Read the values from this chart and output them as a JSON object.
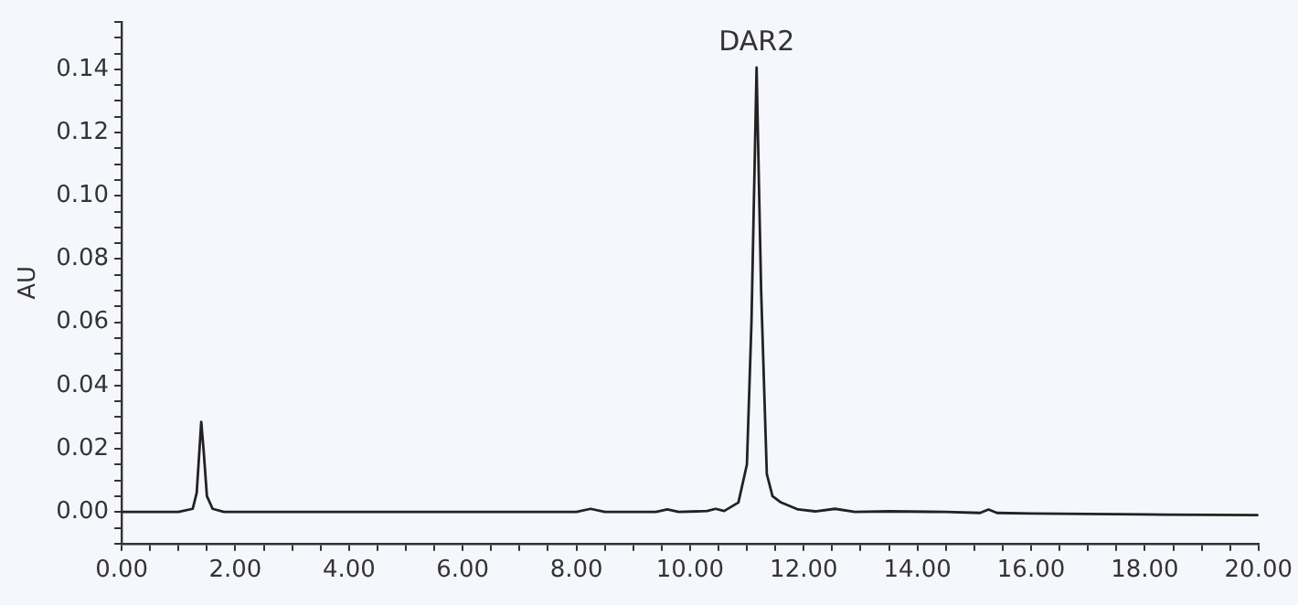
{
  "chart_data": {
    "type": "line",
    "ylabel": "AU",
    "x": [
      0,
      1.0,
      1.25,
      1.32,
      1.37,
      1.4,
      1.44,
      1.5,
      1.6,
      1.8,
      2.5,
      4,
      6,
      8.0,
      8.25,
      8.5,
      9.4,
      9.6,
      9.8,
      10.3,
      10.45,
      10.6,
      10.85,
      11.0,
      11.08,
      11.17,
      11.25,
      11.35,
      11.45,
      11.6,
      11.9,
      12.2,
      12.55,
      12.9,
      13.5,
      14.5,
      15.1,
      15.25,
      15.4,
      16,
      18,
      20
    ],
    "series": [
      {
        "color": "#222222",
        "values": [
          0,
          0,
          0.001,
          0.006,
          0.02,
          0.0285,
          0.02,
          0.005,
          0.001,
          0,
          0,
          0,
          0,
          0,
          0.001,
          0,
          0,
          0.0008,
          0,
          0.0003,
          0.001,
          0.0003,
          0.003,
          0.015,
          0.06,
          0.1406,
          0.07,
          0.012,
          0.005,
          0.003,
          0.0008,
          0.0002,
          0.001,
          0,
          0.0002,
          0,
          -0.0003,
          0.0008,
          -0.0003,
          -0.0005,
          -0.0008,
          -0.001
        ]
      }
    ],
    "xlim": [
      0,
      20
    ],
    "xticks": [
      {
        "value": 0,
        "label": "0.00"
      },
      {
        "value": 0.5,
        "label": null
      },
      {
        "value": 1,
        "label": null
      },
      {
        "value": 1.5,
        "label": null
      },
      {
        "value": 2,
        "label": "2.00"
      },
      {
        "value": 2.5,
        "label": null
      },
      {
        "value": 3,
        "label": null
      },
      {
        "value": 3.5,
        "label": null
      },
      {
        "value": 4,
        "label": "4.00"
      },
      {
        "value": 4.5,
        "label": null
      },
      {
        "value": 5,
        "label": null
      },
      {
        "value": 5.5,
        "label": null
      },
      {
        "value": 6,
        "label": "6.00"
      },
      {
        "value": 6.5,
        "label": null
      },
      {
        "value": 7,
        "label": null
      },
      {
        "value": 7.5,
        "label": null
      },
      {
        "value": 8,
        "label": "8.00"
      },
      {
        "value": 8.5,
        "label": null
      },
      {
        "value": 9,
        "label": null
      },
      {
        "value": 9.5,
        "label": null
      },
      {
        "value": 10,
        "label": "10.00"
      },
      {
        "value": 10.5,
        "label": null
      },
      {
        "value": 11,
        "label": null
      },
      {
        "value": 11.5,
        "label": null
      },
      {
        "value": 12,
        "label": "12.00"
      },
      {
        "value": 12.5,
        "label": null
      },
      {
        "value": 13,
        "label": null
      },
      {
        "value": 13.5,
        "label": null
      },
      {
        "value": 14,
        "label": "14.00"
      },
      {
        "value": 14.5,
        "label": null
      },
      {
        "value": 15,
        "label": null
      },
      {
        "value": 15.5,
        "label": null
      },
      {
        "value": 16,
        "label": "16.00"
      },
      {
        "value": 16.5,
        "label": null
      },
      {
        "value": 17,
        "label": null
      },
      {
        "value": 17.5,
        "label": null
      },
      {
        "value": 18,
        "label": "18.00"
      },
      {
        "value": 18.5,
        "label": null
      },
      {
        "value": 19,
        "label": null
      },
      {
        "value": 19.5,
        "label": null
      },
      {
        "value": 20,
        "label": "20.00"
      }
    ],
    "ylim": [
      -0.01,
      0.155
    ],
    "yticks": [
      {
        "value": -0.01,
        "label": null
      },
      {
        "value": -0.005,
        "label": null
      },
      {
        "value": 0,
        "label": "0.00"
      },
      {
        "value": 0.005,
        "label": null
      },
      {
        "value": 0.01,
        "label": null
      },
      {
        "value": 0.015,
        "label": null
      },
      {
        "value": 0.02,
        "label": "0.02"
      },
      {
        "value": 0.025,
        "label": null
      },
      {
        "value": 0.03,
        "label": null
      },
      {
        "value": 0.035,
        "label": null
      },
      {
        "value": 0.04,
        "label": "0.04"
      },
      {
        "value": 0.045,
        "label": null
      },
      {
        "value": 0.05,
        "label": null
      },
      {
        "value": 0.055,
        "label": null
      },
      {
        "value": 0.06,
        "label": "0.06"
      },
      {
        "value": 0.065,
        "label": null
      },
      {
        "value": 0.07,
        "label": null
      },
      {
        "value": 0.075,
        "label": null
      },
      {
        "value": 0.08,
        "label": "0.08"
      },
      {
        "value": 0.085,
        "label": null
      },
      {
        "value": 0.09,
        "label": null
      },
      {
        "value": 0.095,
        "label": null
      },
      {
        "value": 0.1,
        "label": "0.10"
      },
      {
        "value": 0.105,
        "label": null
      },
      {
        "value": 0.11,
        "label": null
      },
      {
        "value": 0.115,
        "label": null
      },
      {
        "value": 0.12,
        "label": "0.12"
      },
      {
        "value": 0.125,
        "label": null
      },
      {
        "value": 0.13,
        "label": null
      },
      {
        "value": 0.135,
        "label": null
      },
      {
        "value": 0.14,
        "label": "0.14"
      },
      {
        "value": 0.145,
        "label": null
      },
      {
        "value": 0.15,
        "label": null
      },
      {
        "value": 0.155,
        "label": null
      }
    ],
    "annotations": [
      {
        "text": "DAR2",
        "x": 11.17,
        "y": 0.1406
      }
    ],
    "grid": false,
    "legend": false,
    "marker": "none",
    "line_style": "solid"
  }
}
